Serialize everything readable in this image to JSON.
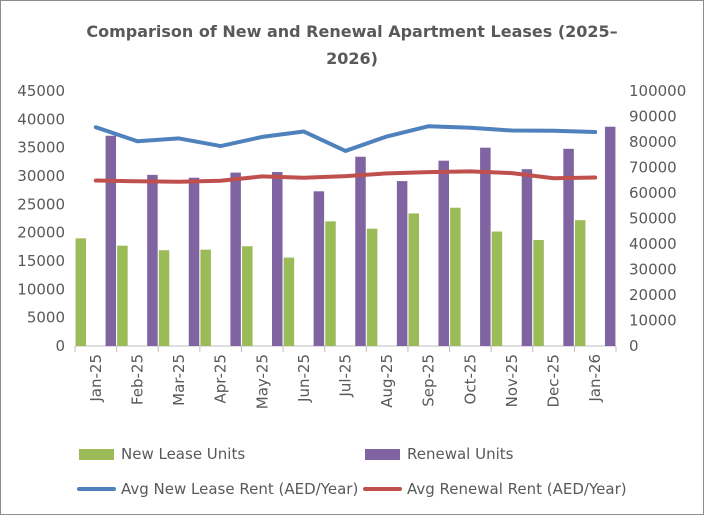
{
  "chart_data": {
    "type": "bar",
    "title_lines": [
      "Comparison of New and Renewal Apartment Leases (2025–",
      "2026)"
    ],
    "categories": [
      "Jan-25",
      "Feb-25",
      "Mar-25",
      "Apr-25",
      "May-25",
      "Jun-25",
      "Jul-25",
      "Aug-25",
      "Sep-25",
      "Oct-25",
      "Nov-25",
      "Dec-25",
      "Jan-26"
    ],
    "y_left": {
      "ylim": [
        0,
        45000
      ],
      "ticks": [
        0,
        5000,
        10000,
        15000,
        20000,
        25000,
        30000,
        35000,
        40000,
        45000
      ]
    },
    "y_right": {
      "ylim": [
        0,
        100000
      ],
      "ticks": [
        0,
        10000,
        20000,
        30000,
        40000,
        50000,
        60000,
        70000,
        80000,
        90000,
        100000
      ]
    },
    "grid": false,
    "legend_position": "bottom",
    "series": [
      {
        "name": "New Lease Units",
        "type": "bar",
        "axis": "left",
        "color": "#9bbb59",
        "values": [
          19000,
          17700,
          16900,
          17000,
          17600,
          15600,
          22000,
          20700,
          23400,
          24400,
          20200,
          18700,
          22200
        ]
      },
      {
        "name": "Renewal Units",
        "type": "bar",
        "axis": "left",
        "color": "#8064a2",
        "values": [
          37100,
          30200,
          29700,
          30600,
          30700,
          27300,
          33400,
          29100,
          32700,
          35000,
          31200,
          34800,
          38700
        ]
      },
      {
        "name": "Avg New Lease Rent (AED/Year)",
        "type": "line",
        "axis": "right",
        "color": "#4f81bd",
        "values": [
          85800,
          80300,
          81400,
          78400,
          82000,
          84100,
          76500,
          82200,
          86200,
          85600,
          84500,
          84400,
          83900
        ]
      },
      {
        "name": "Avg Renewal Rent (AED/Year)",
        "type": "line",
        "axis": "right",
        "color": "#c0504d",
        "values": [
          64900,
          64600,
          64400,
          64800,
          66500,
          66000,
          66600,
          67700,
          68200,
          68500,
          67800,
          65800,
          66100
        ]
      }
    ]
  }
}
